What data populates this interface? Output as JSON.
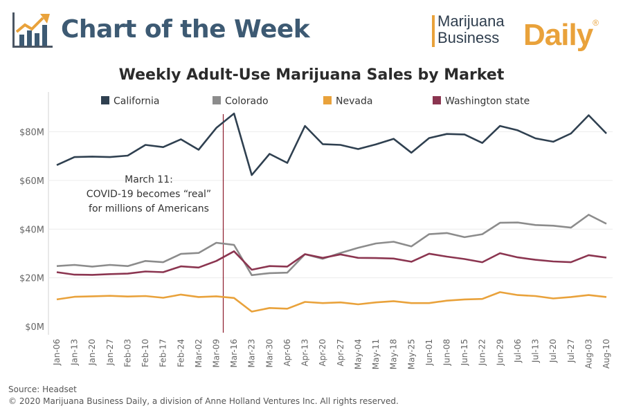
{
  "header": {
    "title": "Chart of the Week",
    "brand_line1": "Marijuana",
    "brand_line2": "Business",
    "brand_daily": "Daily",
    "brand_mark": "®"
  },
  "footer": {
    "source": "Source: Headset",
    "copyright": "© 2020 Marijuana Business Daily, a division of Anne Holland Ventures Inc. All rights reserved."
  },
  "chart_data": {
    "type": "line",
    "title": "Weekly Adult-Use Marijuana Sales by Market",
    "xlabel": "",
    "ylabel": "",
    "ylim": [
      0,
      95
    ],
    "y_ticks": [
      0,
      20,
      40,
      60,
      80
    ],
    "y_tick_labels": [
      "$0M",
      "$20M",
      "$40M",
      "$60M",
      "$80M"
    ],
    "grid": true,
    "legend_position": "top",
    "categories": [
      "Jan-06",
      "Jan-13",
      "Jan-20",
      "Jan-27",
      "Feb-03",
      "Feb-10",
      "Feb-17",
      "Feb-24",
      "Mar-02",
      "Mar-09",
      "Mar-16",
      "Mar-23",
      "Mar-30",
      "Apr-06",
      "Apr-13",
      "Apr-20",
      "Apr-27",
      "May-04",
      "May-11",
      "May-18",
      "May-25",
      "Jun-01",
      "Jun-08",
      "Jun-15",
      "Jun-22",
      "Jun-29",
      "Jul-06",
      "Jul-13",
      "Jul-20",
      "Jul-27",
      "Aug-03",
      "Aug-10"
    ],
    "series": [
      {
        "name": "California",
        "color": "#2f4050",
        "values": [
          66.3,
          69.6,
          69.8,
          69.6,
          70.2,
          74.6,
          73.7,
          76.9,
          72.6,
          81.6,
          87.5,
          62.2,
          70.9,
          67.2,
          82.4,
          74.9,
          74.6,
          72.9,
          74.8,
          77.1,
          71.4,
          77.4,
          79.1,
          78.9,
          75.4,
          82.4,
          80.6,
          77.3,
          75.9,
          79.3,
          86.8,
          79.3
        ]
      },
      {
        "name": "Colorado",
        "color": "#8c8c8c",
        "values": [
          24.8,
          25.3,
          24.6,
          25.3,
          24.8,
          26.9,
          26.4,
          29.8,
          30.2,
          34.4,
          33.5,
          21.1,
          21.9,
          22.1,
          29.7,
          27.8,
          30.2,
          32.3,
          34.1,
          34.8,
          32.9,
          37.9,
          38.4,
          36.7,
          37.9,
          42.6,
          42.7,
          41.7,
          41.4,
          40.6,
          45.9,
          42.2
        ]
      },
      {
        "name": "Nevada",
        "color": "#e9a23b",
        "values": [
          11.1,
          12.2,
          12.4,
          12.6,
          12.3,
          12.5,
          11.8,
          13.1,
          12.1,
          12.4,
          11.7,
          6.1,
          7.6,
          7.3,
          10.1,
          9.6,
          9.9,
          9.1,
          9.9,
          10.4,
          9.6,
          9.6,
          10.6,
          11.1,
          11.3,
          14.1,
          12.9,
          12.5,
          11.5,
          12.1,
          12.9,
          12.1
        ]
      },
      {
        "name": "Washington state",
        "color": "#8b3550",
        "values": [
          22.3,
          21.3,
          21.2,
          21.5,
          21.7,
          22.6,
          22.3,
          24.7,
          24.2,
          26.9,
          30.9,
          23.3,
          24.8,
          24.6,
          29.7,
          28.2,
          29.6,
          28.2,
          28.1,
          27.9,
          26.6,
          29.9,
          28.7,
          27.7,
          26.4,
          30.1,
          28.4,
          27.4,
          26.7,
          26.4,
          29.3,
          28.3
        ]
      }
    ],
    "annotation": {
      "category": "Mar-09",
      "line_color": "#8b1a2b",
      "lines": [
        "March 11:",
        "COVID-19 becomes “real”",
        "for millions of Americans"
      ]
    }
  }
}
